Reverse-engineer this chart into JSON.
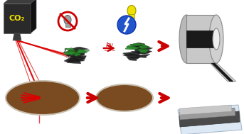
{
  "bg_color": "#ffffff",
  "co2_box_color": "#2a2a2a",
  "co2_text_color": "#f0e000",
  "laser_red": "#dd0000",
  "arrow_red": "#cc0000",
  "material_dark": "#1a1a1a",
  "material_green": "#2a7a2a",
  "disk_brown": "#7a4a20",
  "disk_border": "#c8c0b0",
  "tape_gray": "#c8c8c8",
  "tape_dark": "#2a2a2a",
  "sensor_blue_light": "#dde8f5",
  "no_symbol_red": "#cc0000",
  "yes_symbol_blue": "#2255cc",
  "bulb_yellow": "#f0e000",
  "gray_bulb": "#a0a0a0"
}
